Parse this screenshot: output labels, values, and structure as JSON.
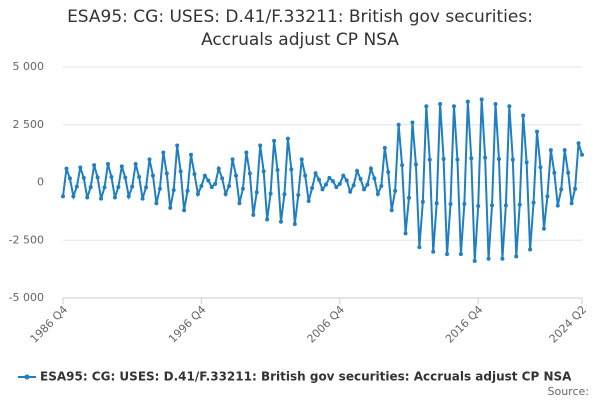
{
  "chart_data": {
    "type": "line",
    "title": "ESA95: CG: USES: D.41/F.33211: British gov securities: Accruals adjust CP NSA",
    "source": "Source:",
    "categories": [
      "1986 Q4",
      null,
      null,
      null,
      null,
      null,
      null,
      null,
      null,
      null,
      null,
      null,
      null,
      null,
      null,
      null,
      null,
      null,
      null,
      null,
      null,
      null,
      null,
      null,
      null,
      null,
      null,
      null,
      null,
      null,
      null,
      null,
      null,
      null,
      null,
      null,
      null,
      null,
      null,
      null,
      "1996 Q4",
      null,
      null,
      null,
      null,
      null,
      null,
      null,
      null,
      null,
      null,
      null,
      null,
      null,
      null,
      null,
      null,
      null,
      null,
      null,
      null,
      null,
      null,
      null,
      null,
      null,
      null,
      null,
      null,
      null,
      null,
      null,
      null,
      null,
      null,
      null,
      null,
      null,
      null,
      null,
      "2006 Q4",
      null,
      null,
      null,
      null,
      null,
      null,
      null,
      null,
      null,
      null,
      null,
      null,
      null,
      null,
      null,
      null,
      null,
      null,
      null,
      null,
      null,
      null,
      null,
      null,
      null,
      null,
      null,
      null,
      null,
      null,
      null,
      null,
      null,
      null,
      null,
      null,
      null,
      null,
      null,
      "2016 Q4",
      null,
      null,
      null,
      null,
      null,
      null,
      null,
      null,
      null,
      null,
      null,
      null,
      null,
      null,
      null,
      null,
      null,
      null,
      null,
      null,
      null,
      null,
      null,
      null,
      null,
      null,
      null,
      null,
      null,
      "2024 Q2"
    ],
    "series": [
      {
        "name": "ESA95: CG: USES: D.41/F.33211: British gov securities: Accruals adjust CP NSA",
        "color": "#1f7fc0",
        "values": [
          -600,
          600,
          180,
          -600,
          -180,
          650,
          200,
          -650,
          -200,
          750,
          220,
          -700,
          -210,
          800,
          240,
          -650,
          -200,
          700,
          210,
          -600,
          -180,
          800,
          240,
          -700,
          -210,
          1000,
          300,
          -900,
          -270,
          1300,
          390,
          -1100,
          -330,
          1600,
          480,
          -1200,
          -360,
          1200,
          360,
          -500,
          -150,
          300,
          90,
          -200,
          -60,
          600,
          180,
          -500,
          -150,
          1000,
          300,
          -900,
          -270,
          1300,
          390,
          -1400,
          -420,
          1600,
          480,
          -1600,
          -480,
          1800,
          540,
          -1700,
          -510,
          1900,
          570,
          -1800,
          -540,
          1000,
          300,
          -800,
          -240,
          400,
          120,
          -300,
          -90,
          200,
          60,
          -200,
          -60,
          300,
          90,
          -400,
          -120,
          500,
          150,
          -300,
          -90,
          600,
          180,
          -500,
          -150,
          1500,
          450,
          -1200,
          -360,
          2500,
          750,
          -2200,
          -660,
          2600,
          780,
          -2800,
          -840,
          3300,
          990,
          -3000,
          -900,
          3400,
          1020,
          -3100,
          -930,
          3300,
          990,
          -3100,
          -930,
          3500,
          1050,
          -3400,
          -1020,
          3600,
          1080,
          -3300,
          -990,
          3400,
          1020,
          -3300,
          -990,
          3300,
          990,
          -3200,
          -960,
          2900,
          870,
          -2900,
          -870,
          2200,
          660,
          -2000,
          -600,
          1400,
          420,
          -1000,
          -300,
          1400,
          420,
          -900,
          -270,
          1700,
          1200
        ]
      }
    ],
    "ylim": [
      -5000,
      5000
    ],
    "yticks": [
      {
        "value": -5000,
        "label": "-5 000"
      },
      {
        "value": -2500,
        "label": "-2 500"
      },
      0,
      {
        "value": 2500,
        "label": "2 500"
      },
      {
        "value": 5000,
        "label": "5 000"
      }
    ],
    "grid": true
  }
}
